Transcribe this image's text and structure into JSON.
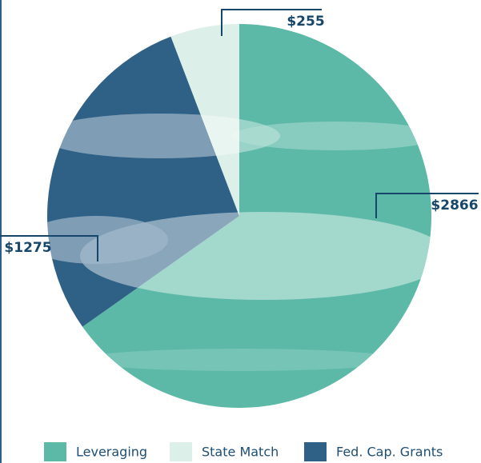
{
  "chart_data": {
    "type": "pie",
    "categories": [
      "Leveraging",
      "Fed. Cap. Grants",
      "State Match"
    ],
    "values": [
      2866,
      1275,
      255
    ],
    "value_labels": [
      "$2866",
      "$1275",
      "$255"
    ],
    "colors": [
      "#5cb9a7",
      "#2f6187",
      "#dcefe9"
    ]
  }
}
